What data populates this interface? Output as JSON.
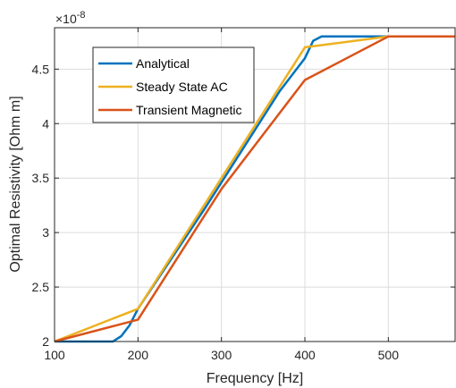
{
  "chart_data": {
    "type": "line",
    "xlabel": "Frequency [Hz]",
    "ylabel": "Optimal Resistivity [Ohm m]",
    "xlim": [
      100,
      580
    ],
    "ylim": [
      2.0,
      4.88
    ],
    "y_multiplier": {
      "base": "×10",
      "exponent": "-8"
    },
    "xticks": [
      100,
      200,
      300,
      400,
      500
    ],
    "xtick_labels": [
      "100",
      "200",
      "300",
      "400",
      "500"
    ],
    "yticks": [
      2.0,
      2.5,
      3.0,
      3.5,
      4.0,
      4.5
    ],
    "ytick_labels": [
      "2",
      "2.5",
      "3",
      "3.5",
      "4",
      "4.5"
    ],
    "grid": true,
    "legend_position": "top-left",
    "series": [
      {
        "name": "Analytical",
        "color": "#0072BD",
        "x": [
          100,
          170,
          180,
          190,
          200,
          280,
          370,
          400,
          410,
          420,
          500,
          580
        ],
        "y": [
          2.0,
          2.0,
          2.05,
          2.15,
          2.3,
          3.22,
          4.3,
          4.6,
          4.76,
          4.8,
          4.8,
          4.8
        ]
      },
      {
        "name": "Steady State AC",
        "color": "#EDB120",
        "x": [
          100,
          200,
          300,
          400,
          500,
          580
        ],
        "y": [
          2.0,
          2.3,
          3.5,
          4.7,
          4.8,
          4.8
        ]
      },
      {
        "name": "Transient Magnetic",
        "color": "#D95319",
        "x": [
          100,
          200,
          300,
          400,
          500,
          580
        ],
        "y": [
          2.0,
          2.2,
          3.4,
          4.4,
          4.8,
          4.8
        ]
      }
    ]
  }
}
